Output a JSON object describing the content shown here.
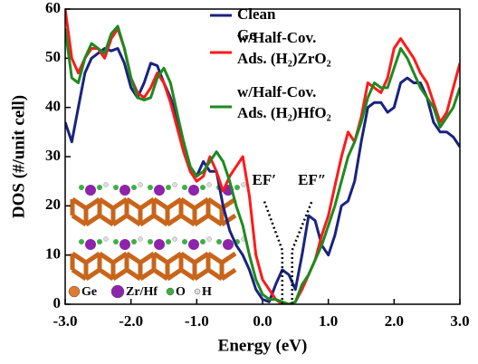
{
  "chart_data": {
    "type": "line",
    "x_label": "Energy (eV)",
    "y_label": "DOS (#/unit cell)",
    "x": [
      -3.0,
      -2.9,
      -2.8,
      -2.7,
      -2.6,
      -2.5,
      -2.4,
      -2.3,
      -2.2,
      -2.1,
      -2.0,
      -1.9,
      -1.8,
      -1.7,
      -1.6,
      -1.5,
      -1.4,
      -1.3,
      -1.2,
      -1.1,
      -1.0,
      -0.9,
      -0.8,
      -0.7,
      -0.6,
      -0.5,
      -0.4,
      -0.3,
      -0.2,
      -0.1,
      0.0,
      0.1,
      0.2,
      0.3,
      0.4,
      0.5,
      0.6,
      0.7,
      0.8,
      0.9,
      1.0,
      1.1,
      1.2,
      1.3,
      1.4,
      1.5,
      1.6,
      1.7,
      1.8,
      1.9,
      2.0,
      2.1,
      2.2,
      2.3,
      2.4,
      2.5,
      2.6,
      2.7,
      2.8,
      2.9,
      3.0
    ],
    "series": [
      {
        "name": "Clean Ge",
        "color": "#1a237e",
        "values": [
          37,
          33,
          40,
          47,
          50,
          51,
          52,
          51.5,
          52,
          49,
          44,
          42,
          45,
          49,
          48.5,
          45,
          42,
          38,
          33,
          28,
          26,
          29,
          27,
          27,
          20,
          15,
          12,
          10,
          7,
          3,
          1,
          0.5,
          4,
          7,
          6,
          3,
          10,
          18,
          17,
          12,
          10,
          14,
          20,
          21,
          25,
          33,
          40,
          41,
          41,
          39,
          40,
          45,
          46,
          45,
          45,
          42,
          37,
          35,
          35,
          34,
          32
        ]
      },
      {
        "name": "w/Half-Cov. Ads. (H₂)ZrO₂",
        "color": "#ff1a1a",
        "values": [
          60,
          50,
          47,
          50,
          52,
          52,
          50,
          54,
          56,
          52,
          46,
          43,
          42,
          44,
          47,
          45,
          41,
          36,
          31,
          27,
          25,
          26,
          30,
          27,
          23,
          26,
          28,
          30,
          22,
          10,
          5,
          3,
          1,
          0,
          0,
          0.5,
          3,
          6,
          9,
          14,
          18,
          24,
          30,
          35,
          33,
          38,
          45,
          44,
          43,
          46,
          52,
          54,
          52,
          50,
          47,
          45,
          41,
          37,
          39,
          44,
          49
        ]
      },
      {
        "name": "w/Half-Cov. Ads. (H₂)HfO₂",
        "color": "#1e8a1e",
        "values": [
          56,
          46,
          45,
          50,
          53,
          52,
          51,
          55,
          56.5,
          52,
          46,
          42,
          41.5,
          42,
          46,
          48,
          45,
          39,
          33,
          28,
          26,
          27,
          29,
          31,
          29,
          25,
          20,
          16,
          10,
          5,
          2,
          1,
          1,
          0.5,
          0,
          0.5,
          4,
          6,
          9,
          12,
          16,
          20,
          25,
          30,
          33,
          37,
          42,
          45,
          44,
          44,
          48,
          52,
          50,
          47,
          44,
          42,
          40,
          36,
          38,
          40,
          44
        ]
      }
    ],
    "xlim": [
      -3.0,
      3.0
    ],
    "xticks": [
      {
        "value": -3.0,
        "label": "-3.0"
      },
      {
        "value": -2.0,
        "label": "-2.0"
      },
      {
        "value": -1.0,
        "label": "-1.0"
      },
      {
        "value": 0.0,
        "label": "0.0"
      },
      {
        "value": 1.0,
        "label": "1.0"
      },
      {
        "value": 2.0,
        "label": "2.0"
      },
      {
        "value": 3.0,
        "label": "3.0"
      }
    ],
    "ylim": [
      0,
      60
    ],
    "yticks": [
      0,
      10,
      20,
      30,
      40,
      50,
      60
    ],
    "annotations": [
      {
        "text": "EF′",
        "x": 0.3
      },
      {
        "text": "EF″",
        "x": 0.45
      }
    ],
    "inset_labels": [
      "Ge",
      "Zr/Hf",
      "O",
      "H"
    ],
    "legend": "upper right"
  }
}
